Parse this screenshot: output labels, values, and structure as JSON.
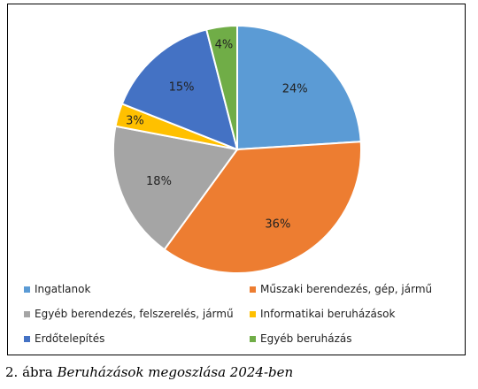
{
  "chart_data": {
    "type": "pie",
    "categories": [
      "Ingatlanok",
      "Műszaki berendezés, gép, jármű",
      "Egyéb berendezés, felszerelés, jármű",
      "Informatikai beruházások",
      "Erdőtelepítés",
      "Egyéb beruházás"
    ],
    "values": [
      24,
      36,
      18,
      3,
      15,
      4
    ],
    "labels": [
      "24%",
      "36%",
      "18%",
      "3%",
      "15%",
      "4%"
    ],
    "colors": [
      "#5b9bd5",
      "#ed7d31",
      "#a5a5a5",
      "#ffc000",
      "#4472c4",
      "#70ad47"
    ],
    "legend_position": "bottom"
  },
  "caption": {
    "number": "2. ábra",
    "title": "Beruházások megoszlása 2024-ben"
  }
}
